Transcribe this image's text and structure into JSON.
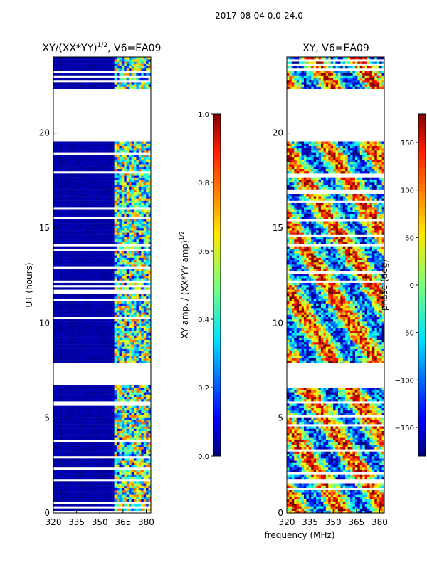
{
  "figure": {
    "suptitle": "2017-08-04 0.0-24.0",
    "xlabel": "frequency (MHz)"
  },
  "chart_data": [
    {
      "type": "heatmap",
      "title_main": "XY/(XX*YY)",
      "title_exp": "1/2",
      "title_suffix": ", V6=EA09",
      "xlabel": "",
      "ylabel": "UT (hours)",
      "xlim": [
        320,
        383
      ],
      "ylim": [
        0,
        24
      ],
      "x_ticks": [
        "320",
        "335",
        "350",
        "365",
        "380"
      ],
      "x_tick_values": [
        320,
        335,
        350,
        365,
        380
      ],
      "y_ticks": [
        "0",
        "5",
        "10",
        "15",
        "20"
      ],
      "y_tick_values": [
        0,
        5,
        10,
        15,
        20
      ],
      "colorbar": {
        "label_main": "XY amp. / (XX*YY amp)",
        "label_exp": "1/2",
        "range": [
          0.0,
          1.0
        ],
        "ticks": [
          "0.0",
          "0.2",
          "0.4",
          "0.6",
          "0.8",
          "1.0"
        ],
        "tick_values": [
          0.0,
          0.2,
          0.4,
          0.6,
          0.8,
          1.0
        ]
      },
      "data_gaps_hours": [
        [
          0.85,
          0.95
        ],
        [
          1.6,
          1.7
        ],
        [
          5.7,
          5.85
        ],
        [
          6.7,
          7.9
        ],
        [
          12.0,
          12.15
        ],
        [
          19.5,
          22.3
        ]
      ],
      "active_band_mhz": [
        359,
        383
      ],
      "typical_low_value": 0.02,
      "typical_band_value": 0.45
    },
    {
      "type": "heatmap",
      "title_main": "XY, V6=EA09",
      "xlabel": "",
      "ylabel": "",
      "xlim": [
        320,
        383
      ],
      "ylim": [
        0,
        24
      ],
      "x_ticks": [
        "320",
        "335",
        "350",
        "365",
        "380"
      ],
      "x_tick_values": [
        320,
        335,
        350,
        365,
        380
      ],
      "y_ticks": [
        "0",
        "5",
        "10",
        "15",
        "20"
      ],
      "y_tick_values": [
        0,
        5,
        10,
        15,
        20
      ],
      "colorbar": {
        "label_main": "phase (deg)",
        "range": [
          -180,
          180
        ],
        "ticks": [
          "−150",
          "−100",
          "−50",
          "0",
          "50",
          "100",
          "150"
        ],
        "tick_values": [
          -150,
          -100,
          -50,
          0,
          50,
          100,
          150
        ]
      },
      "data_gaps_hours": [
        [
          0.85,
          0.95
        ],
        [
          1.6,
          1.7
        ],
        [
          5.7,
          5.85
        ],
        [
          6.7,
          7.9
        ],
        [
          12.0,
          12.15
        ],
        [
          19.5,
          22.3
        ]
      ]
    }
  ]
}
